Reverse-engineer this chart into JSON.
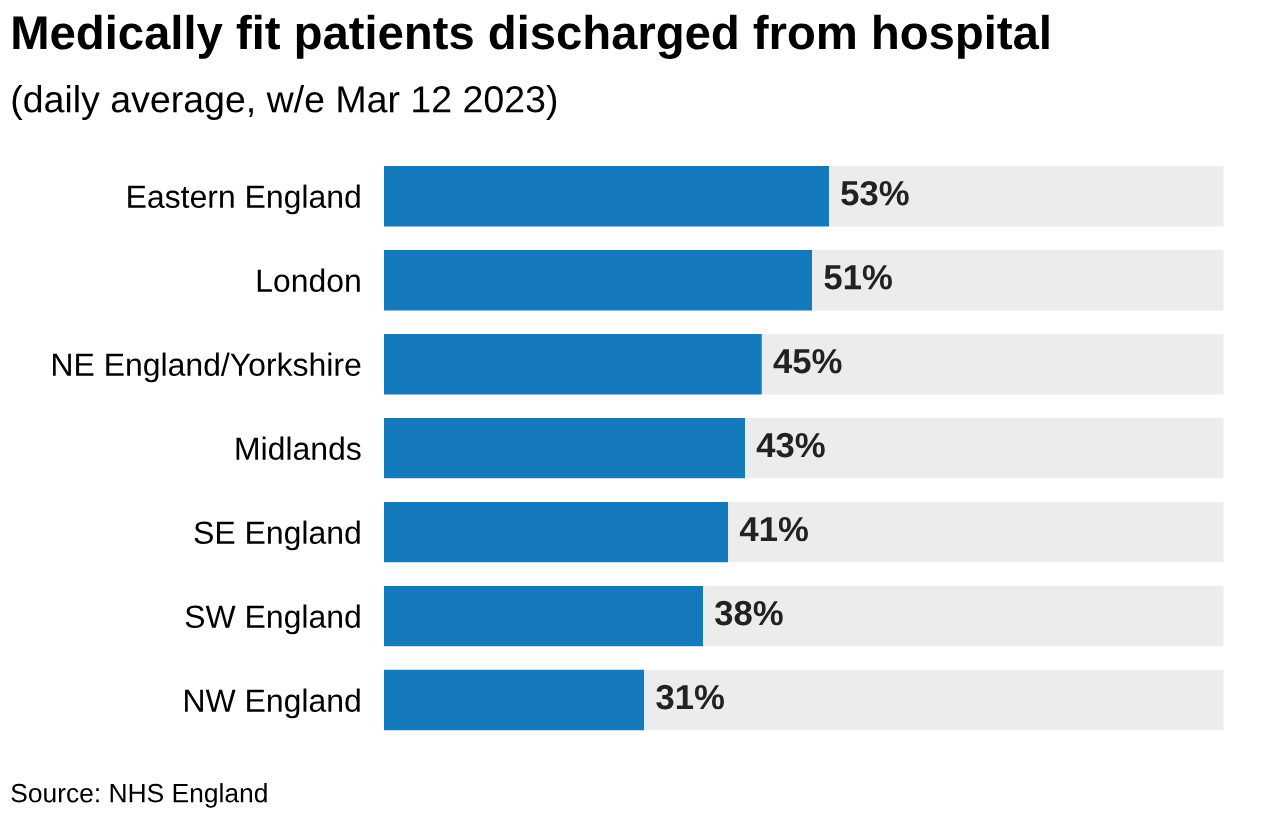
{
  "chart_data": {
    "type": "bar",
    "orientation": "horizontal",
    "stacked": true,
    "title": "Medically fit patients discharged from hospital",
    "subtitle": "(daily average, w/e Mar 12 2023)",
    "categories": [
      "Eastern England",
      "London",
      "NE England/Yorkshire",
      "Midlands",
      "SE England",
      "SW England",
      "NW England"
    ],
    "series": [
      {
        "color": "#1479bd",
        "values": [
          53,
          51,
          45,
          43,
          41,
          38,
          31
        ],
        "value_labels": [
          "53%",
          "51%",
          "45%",
          "43%",
          "41%",
          "38%",
          "31%"
        ]
      },
      {
        "color": "#ececec",
        "values": [
          47,
          49,
          55,
          57,
          59,
          62,
          69
        ]
      }
    ],
    "xlim": [
      0,
      100
    ],
    "tick_labels": "y",
    "grid": false,
    "legend": false,
    "annotations": [
      "Source: NHS England"
    ]
  }
}
